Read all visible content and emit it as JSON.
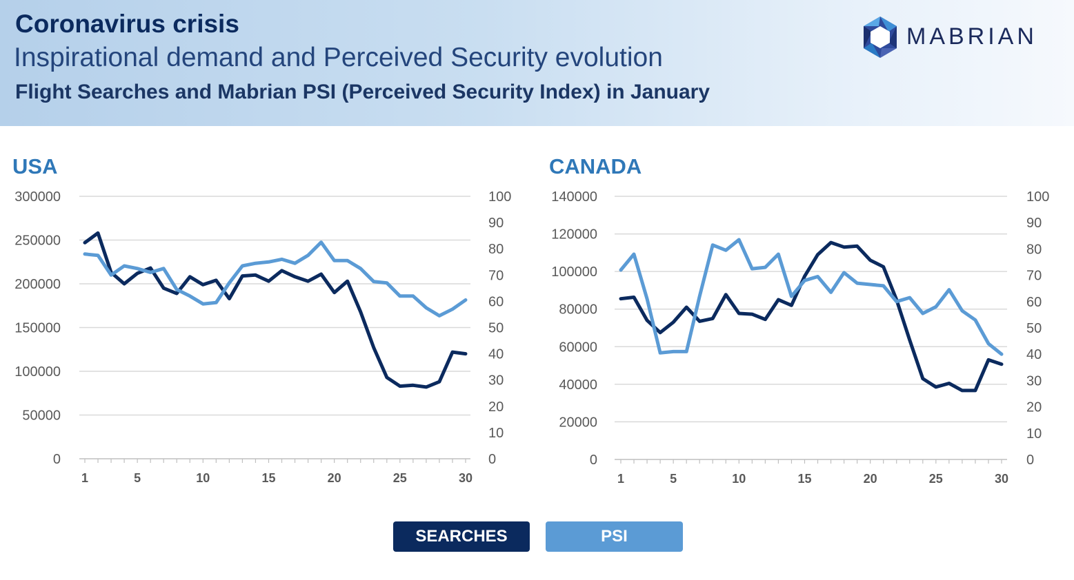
{
  "header": {
    "title": "Coronavirus crisis",
    "subtitle": "Inspirational demand and Perceived Security evolution",
    "subtitle2": "Flight Searches and Mabrian PSI (Perceived Security Index) in January",
    "brand": "MABRIAN"
  },
  "colors": {
    "searches": "#0b2a5e",
    "psi": "#5b9bd5",
    "grid": "#d9d9d9",
    "panel_title": "#2f78b8"
  },
  "legend": [
    {
      "label": "SEARCHES",
      "color": "#0b2a5e"
    },
    {
      "label": "PSI",
      "color": "#5b9bd5"
    }
  ],
  "chart_data": [
    {
      "type": "line",
      "title": "USA",
      "x_tick_labels": [
        "1",
        "5",
        "10",
        "15",
        "20",
        "25",
        "30"
      ],
      "x_tick_values": [
        1,
        5,
        10,
        15,
        20,
        25,
        30
      ],
      "xlim": [
        1,
        30
      ],
      "ylim_left": [
        0,
        300000
      ],
      "yticks_left": [
        "300000",
        "250000",
        "200000",
        "150000",
        "100000",
        "50000",
        "0"
      ],
      "ylim_right": [
        0,
        100
      ],
      "yticks_right": [
        "100",
        "90",
        "80",
        "70",
        "60",
        "50",
        "40",
        "30",
        "20",
        "10",
        "0"
      ],
      "grid": true,
      "x": [
        1,
        2,
        3,
        4,
        5,
        6,
        7,
        8,
        9,
        10,
        11,
        12,
        13,
        14,
        15,
        16,
        17,
        18,
        19,
        20,
        21,
        22,
        23,
        24,
        25,
        26,
        27,
        28,
        29,
        30
      ],
      "series": [
        {
          "name": "SEARCHES",
          "axis": "left",
          "values": [
            247000,
            258000,
            213000,
            200000,
            212000,
            218000,
            195000,
            189000,
            208000,
            199000,
            204000,
            183000,
            209000,
            210000,
            203000,
            215000,
            208000,
            203000,
            211000,
            190000,
            203000,
            168000,
            127000,
            93000,
            83000,
            84000,
            82000,
            88000,
            122000,
            120000
          ]
        },
        {
          "name": "PSI",
          "axis": "right",
          "values": [
            78,
            77.5,
            70,
            73.5,
            72.5,
            71,
            72.5,
            64.5,
            62,
            59,
            59.5,
            67,
            73.5,
            74.5,
            75,
            76,
            74.5,
            77.5,
            82.5,
            75.5,
            75.5,
            72.5,
            67.5,
            67,
            62,
            62,
            57.5,
            54.5,
            57,
            60.5
          ]
        }
      ]
    },
    {
      "type": "line",
      "title": "CANADA",
      "x_tick_labels": [
        "1",
        "5",
        "10",
        "15",
        "20",
        "25",
        "30"
      ],
      "x_tick_values": [
        1,
        5,
        10,
        15,
        20,
        25,
        30
      ],
      "xlim": [
        1,
        30
      ],
      "ylim_left": [
        0,
        140000
      ],
      "yticks_left": [
        "140000",
        "120000",
        "100000",
        "80000",
        "60000",
        "40000",
        "20000",
        "0"
      ],
      "ylim_right": [
        0,
        100
      ],
      "yticks_right": [
        "100",
        "90",
        "80",
        "70",
        "60",
        "50",
        "40",
        "30",
        "20",
        "10",
        "0"
      ],
      "grid": true,
      "x": [
        1,
        2,
        3,
        4,
        5,
        6,
        7,
        8,
        9,
        10,
        11,
        12,
        13,
        14,
        15,
        16,
        17,
        18,
        19,
        20,
        21,
        22,
        23,
        24,
        25,
        26,
        27,
        28,
        29,
        30
      ],
      "series": [
        {
          "name": "SEARCHES",
          "axis": "left",
          "values": [
            85500,
            86300,
            74000,
            67500,
            73000,
            81000,
            73500,
            75000,
            87700,
            77700,
            77300,
            74500,
            85000,
            82000,
            97500,
            109000,
            115400,
            113000,
            113500,
            106000,
            102500,
            85000,
            63500,
            43000,
            38500,
            40500,
            36700,
            36700,
            53000,
            50700
          ]
        },
        {
          "name": "PSI",
          "axis": "right",
          "values": [
            72,
            78,
            61,
            40.5,
            41,
            41,
            62,
            81.5,
            79.5,
            83.5,
            72.5,
            73,
            78,
            62,
            68,
            69.5,
            63.5,
            71,
            67,
            66.5,
            66,
            60,
            61.5,
            55.5,
            58,
            64.5,
            56.5,
            53,
            44,
            40
          ]
        }
      ]
    }
  ]
}
